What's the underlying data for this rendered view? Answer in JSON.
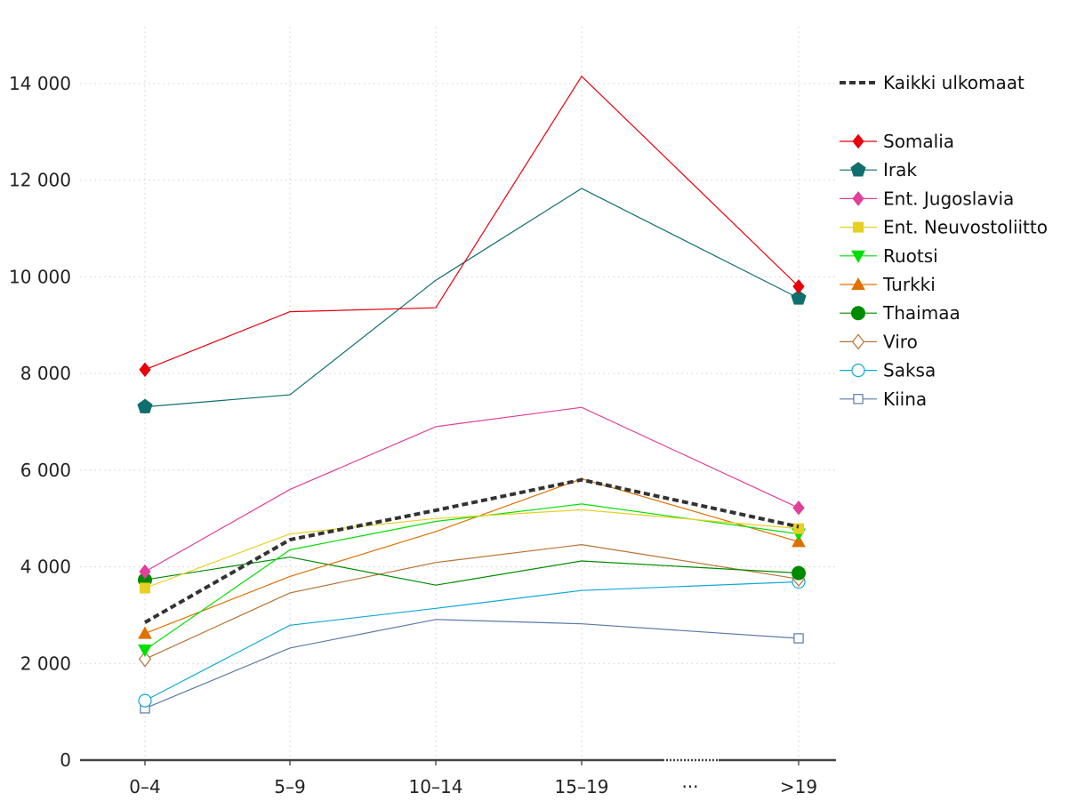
{
  "chart_data": {
    "type": "line",
    "categories": [
      "0–4",
      "5–9",
      "10–14",
      "15–19",
      "···",
      ">19"
    ],
    "ylim": [
      0,
      15000
    ],
    "yticks": [
      0,
      2000,
      4000,
      6000,
      8000,
      10000,
      12000,
      14000
    ],
    "ytick_labels": [
      "0",
      "2 000",
      "4 000",
      "6 000",
      "8 000",
      "10 000",
      "12 000",
      "14 000"
    ],
    "grid": true,
    "legend_position": "right",
    "total_series": {
      "name": "Kaikki ulkomaat",
      "color": "#333333",
      "values": [
        2850,
        4560,
        5170,
        5800,
        null,
        4830
      ]
    },
    "series": [
      {
        "name": "Somalia",
        "color": "#e8000b",
        "marker": "diamond",
        "values": [
          8080,
          9280,
          9360,
          14150,
          null,
          9800
        ]
      },
      {
        "name": "Irak",
        "color": "#0f6e6e",
        "marker": "pentagon",
        "values": [
          7310,
          7560,
          9930,
          11830,
          null,
          9560
        ]
      },
      {
        "name": "Ent. Jugoslavia",
        "color": "#e0409a",
        "marker": "diamond",
        "values": [
          3900,
          5600,
          6900,
          7300,
          null,
          5220
        ]
      },
      {
        "name": "Ent. Neuvostoliitto",
        "color": "#e8d020",
        "marker": "square",
        "values": [
          3560,
          4680,
          5000,
          5180,
          null,
          4790
        ]
      },
      {
        "name": "Ruotsi",
        "color": "#00e000",
        "marker": "triangle-down",
        "values": [
          2280,
          4350,
          4940,
          5300,
          null,
          4680
        ]
      },
      {
        "name": "Turkki",
        "color": "#e07000",
        "marker": "triangle-up",
        "values": [
          2620,
          3800,
          4730,
          5820,
          null,
          4520
        ]
      },
      {
        "name": "Thaimaa",
        "color": "#008a00",
        "marker": "circle",
        "values": [
          3730,
          4200,
          3620,
          4120,
          null,
          3870
        ]
      },
      {
        "name": "Viro",
        "color": "#b87333",
        "marker": "diamond-open",
        "values": [
          2090,
          3460,
          4090,
          4460,
          null,
          3750
        ]
      },
      {
        "name": "Saksa",
        "color": "#10a8d8",
        "marker": "circle-open",
        "values": [
          1230,
          2790,
          3140,
          3510,
          null,
          3690
        ]
      },
      {
        "name": "Kiina",
        "color": "#5a7aa8",
        "marker": "square-open",
        "values": [
          1070,
          2320,
          2910,
          2820,
          null,
          2520
        ]
      }
    ]
  }
}
